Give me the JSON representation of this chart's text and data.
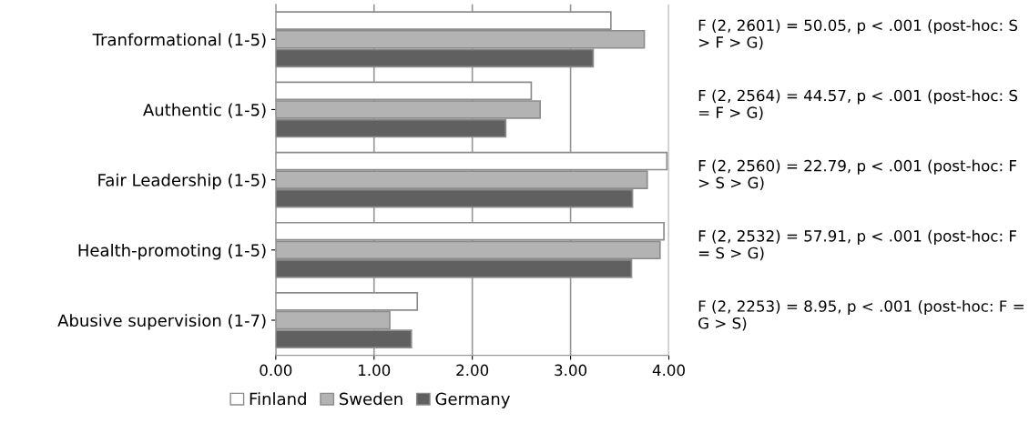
{
  "chart_data": {
    "type": "bar",
    "orientation": "horizontal",
    "categories": [
      "Tranformational (1-5)",
      "Authentic (1-5)",
      "Fair Leadership (1-5)",
      "Health-promoting (1-5)",
      "Abusive supervision (1-7)"
    ],
    "series": [
      {
        "name": "Finland",
        "color": "#ffffff",
        "values": [
          3.41,
          2.6,
          3.98,
          3.95,
          1.44
        ]
      },
      {
        "name": "Sweden",
        "color": "#b3b3b3",
        "values": [
          3.75,
          2.69,
          3.78,
          3.91,
          1.16
        ]
      },
      {
        "name": "Germany",
        "color": "#606060",
        "values": [
          3.23,
          2.34,
          3.63,
          3.62,
          1.38
        ]
      }
    ],
    "xlim": [
      0,
      4
    ],
    "xticks": [
      {
        "value": 0,
        "label": "0.00"
      },
      {
        "value": 1,
        "label": "1.00"
      },
      {
        "value": 2,
        "label": "2.00"
      },
      {
        "value": 3,
        "label": "3.00"
      },
      {
        "value": 4,
        "label": "4.00"
      }
    ],
    "grid": "x",
    "legend": "bottom",
    "annotations": [
      "F (2, 2601) = 50.05, p < .001 (post-hoc: S > F > G)",
      "F (2, 2564) = 44.57, p < .001 (post-hoc: S = F > G)",
      "F (2, 2560) = 22.79, p < .001 (post-hoc: F > S > G)",
      "F (2, 2532) = 57.91, p < .001 (post-hoc: F = S > G)",
      "F (2, 2253) = 8.95, p < .001 (post-hoc: F = G > S)"
    ]
  }
}
